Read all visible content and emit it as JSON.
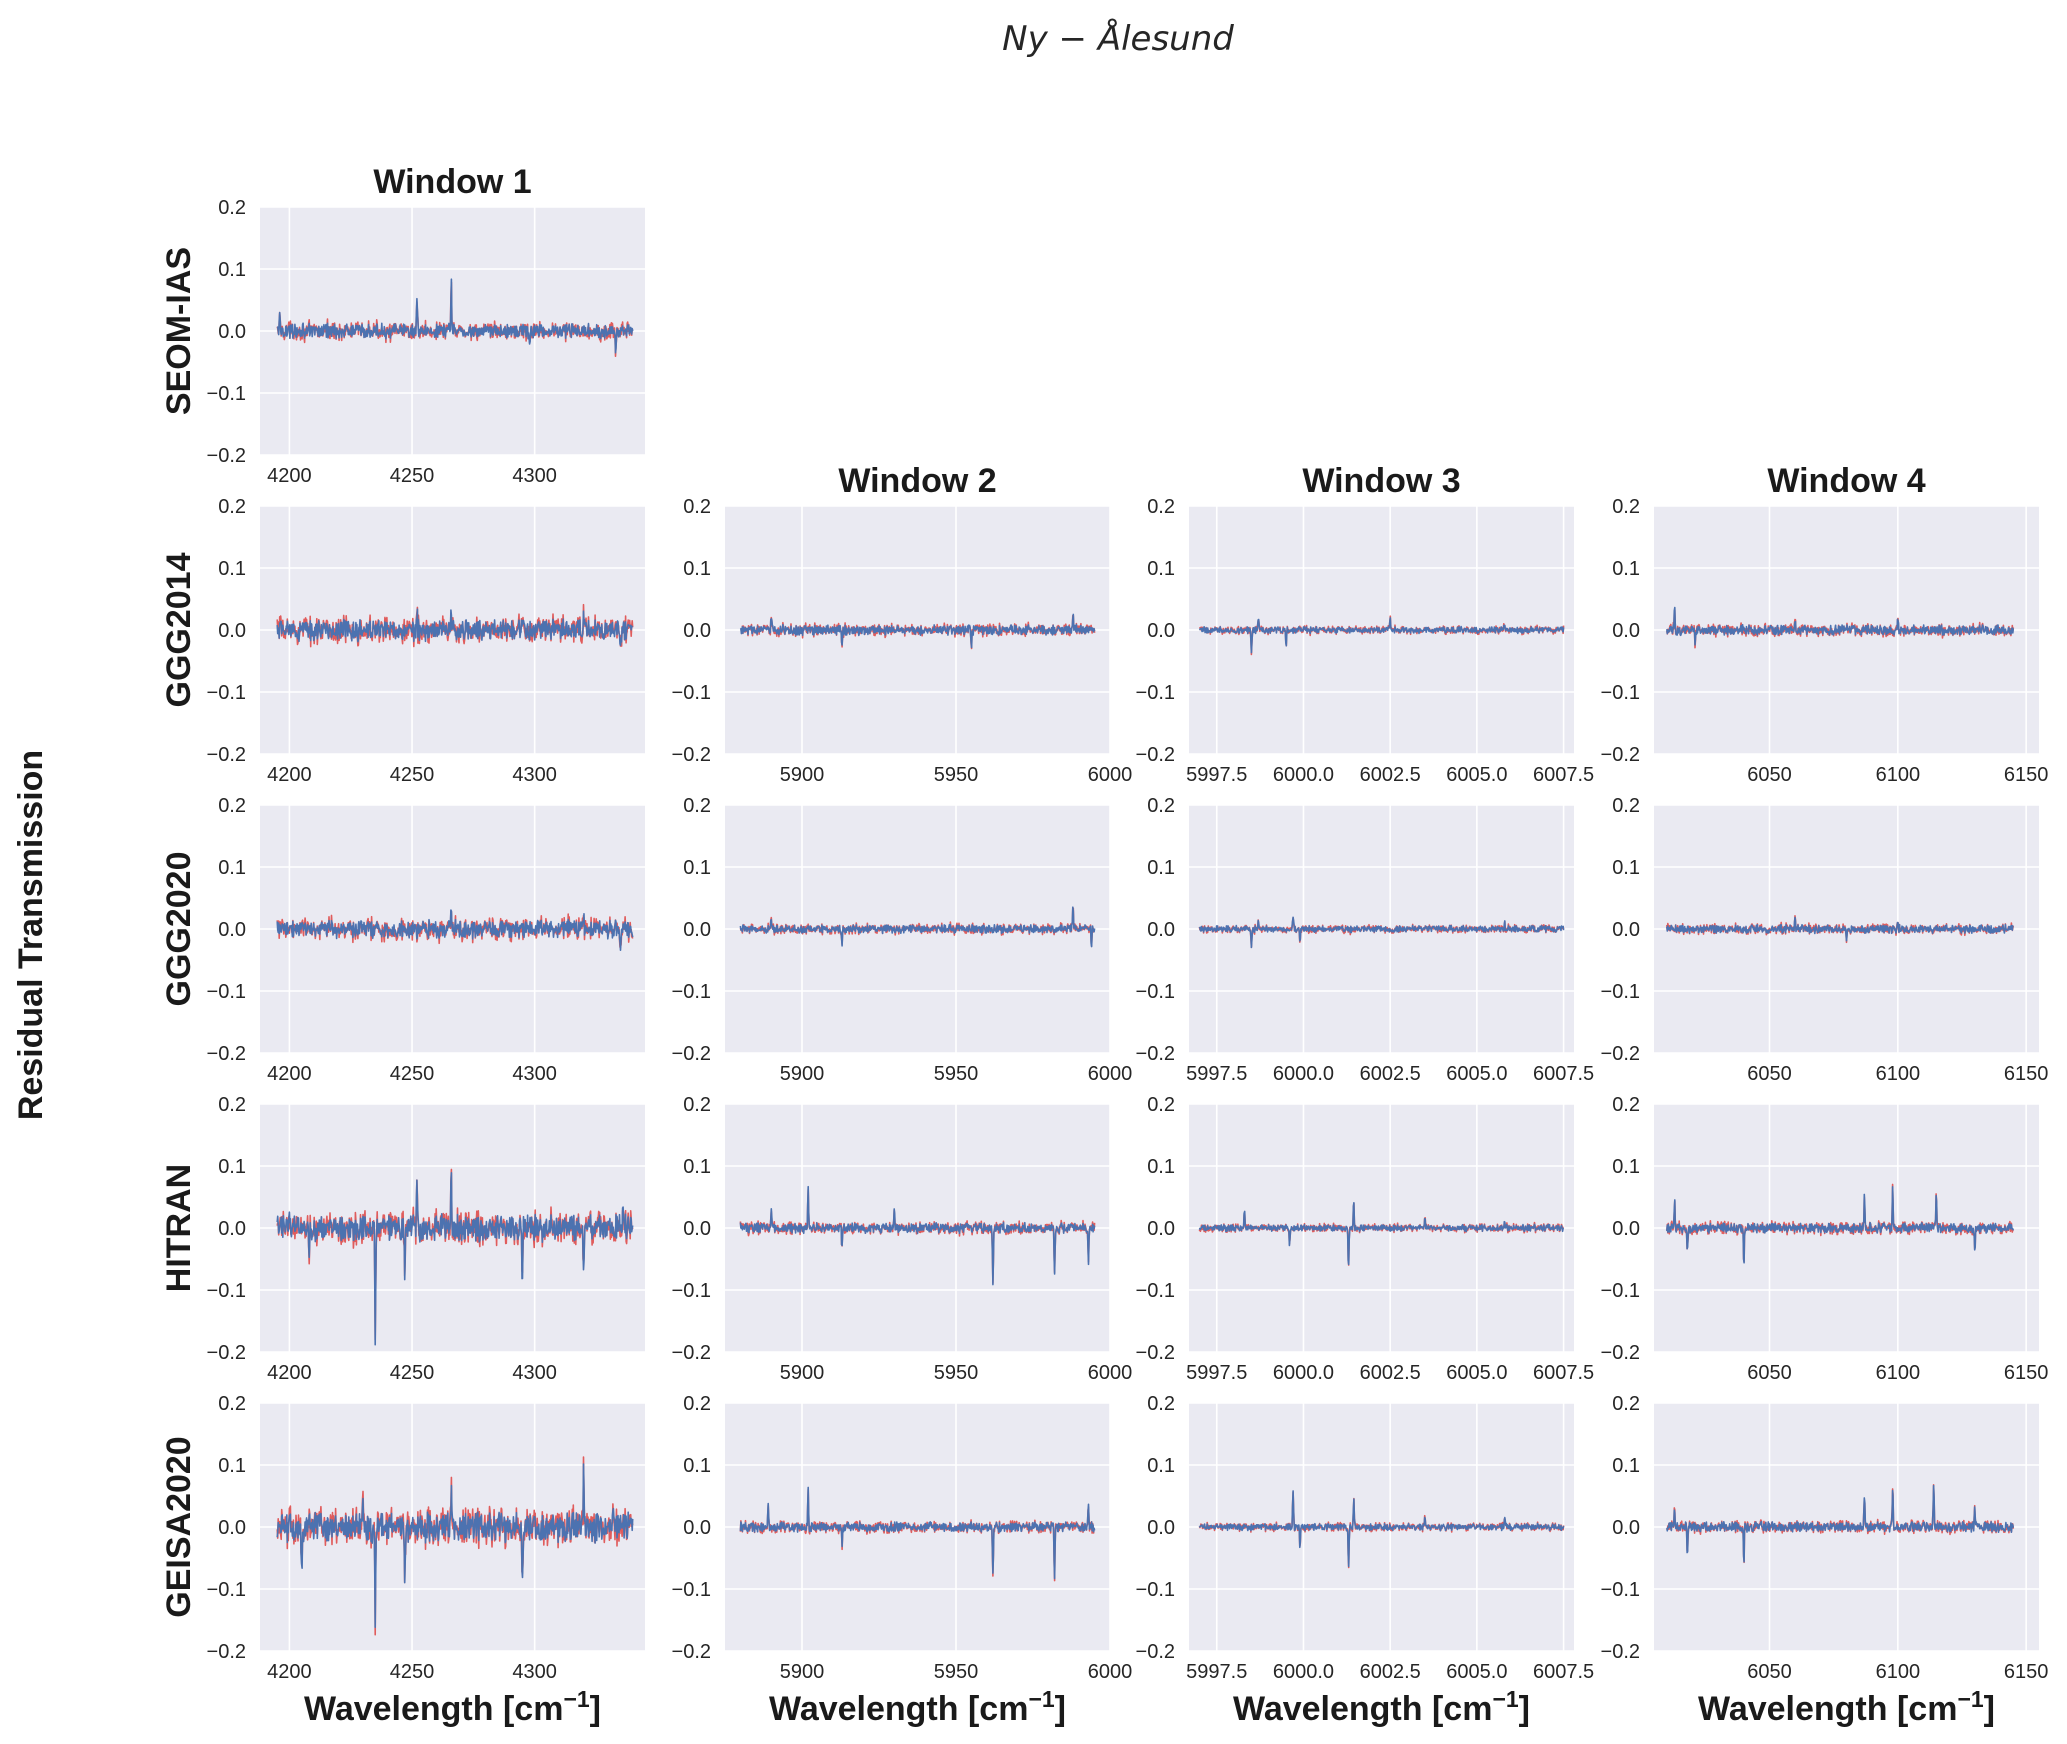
{
  "figure": {
    "title": "Ny − Ålesund",
    "ylabel": "Residual Transmission",
    "xlabel": "Wavelength [cm",
    "xlabel_exponent": "−1",
    "xlabel_close": "]",
    "colors": {
      "background": "#eaeaf2",
      "grid": "#ffffff",
      "observed": "#e05c5c",
      "fitted": "#4c72b0"
    }
  },
  "chart_data": [
    {
      "type": "line",
      "title": "Window 1",
      "row": "SEOM-IAS",
      "window": 1,
      "xlim": [
        4188,
        4345
      ],
      "ylim": [
        -0.2,
        0.2
      ],
      "xticks": [
        4200,
        4250,
        4300
      ],
      "xtick_labels": [
        "4200",
        "4250",
        "4300"
      ],
      "yticks": [
        -0.2,
        -0.1,
        0.0,
        0.1,
        0.2
      ],
      "ytick_labels": [
        "−0.2",
        "−0.1",
        "0.0",
        "0.1",
        "0.2"
      ],
      "x_range": [
        4195,
        4340
      ],
      "noise_amplitude": 0.009,
      "spikes": [
        [
          4252,
          0.05
        ],
        [
          4266,
          0.075
        ],
        [
          4298,
          -0.03
        ],
        [
          4333,
          -0.035
        ],
        [
          4196,
          0.025
        ]
      ]
    },
    {
      "type": "line",
      "title": "Window 1",
      "row": "GGG2014",
      "window": 1,
      "xlim": [
        4188,
        4345
      ],
      "ylim": [
        -0.2,
        0.2
      ],
      "xticks": [
        4200,
        4250,
        4300
      ],
      "xtick_labels": [
        "4200",
        "4250",
        "4300"
      ],
      "yticks": [
        -0.2,
        -0.1,
        0.0,
        0.1,
        0.2
      ],
      "ytick_labels": [
        "−0.2",
        "−0.1",
        "0.0",
        "0.1",
        "0.2"
      ],
      "x_range": [
        4195,
        4340
      ],
      "noise_amplitude": 0.013,
      "spikes": [
        [
          4266,
          0.035
        ],
        [
          4252,
          0.03
        ],
        [
          4320,
          0.025
        ],
        [
          4335,
          -0.03
        ]
      ]
    },
    {
      "type": "line",
      "title": "Window 2",
      "row": "GGG2014",
      "window": 2,
      "xlim": [
        5875,
        6000
      ],
      "ylim": [
        -0.2,
        0.2
      ],
      "xticks": [
        5900,
        5950,
        6000
      ],
      "xtick_labels": [
        "5900",
        "5950",
        "6000"
      ],
      "yticks": [
        -0.2,
        -0.1,
        0.0,
        0.1,
        0.2
      ],
      "ytick_labels": [
        "−0.2",
        "−0.1",
        "0.0",
        "0.1",
        "0.2"
      ],
      "x_range": [
        5880,
        5995
      ],
      "noise_amplitude": 0.006,
      "spikes": [
        [
          5890,
          0.025
        ],
        [
          5913,
          -0.03
        ],
        [
          5955,
          -0.03
        ],
        [
          5988,
          0.03
        ]
      ]
    },
    {
      "type": "line",
      "title": "Window 3",
      "row": "GGG2014",
      "window": 3,
      "xlim": [
        5996.7,
        6007.8
      ],
      "ylim": [
        -0.2,
        0.2
      ],
      "xticks": [
        5997.5,
        6000.0,
        6002.5,
        6005.0,
        6007.5
      ],
      "xtick_labels": [
        "5997.5",
        "6000.0",
        "6002.5",
        "6005.0",
        "6007.5"
      ],
      "yticks": [
        -0.2,
        -0.1,
        0.0,
        0.1,
        0.2
      ],
      "ytick_labels": [
        "−0.2",
        "−0.1",
        "0.0",
        "0.1",
        "0.2"
      ],
      "x_range": [
        5997.0,
        6007.5
      ],
      "noise_amplitude": 0.004,
      "spikes": [
        [
          5998.5,
          -0.035
        ],
        [
          5998.7,
          0.018
        ],
        [
          5999.5,
          -0.025
        ],
        [
          6002.5,
          0.018
        ],
        [
          6005.8,
          0.012
        ]
      ]
    },
    {
      "type": "line",
      "title": "Window 4",
      "row": "GGG2014",
      "window": 4,
      "xlim": [
        6005,
        6155
      ],
      "ylim": [
        -0.2,
        0.2
      ],
      "xticks": [
        6050,
        6100,
        6150
      ],
      "xtick_labels": [
        "6050",
        "6100",
        "6150"
      ],
      "yticks": [
        -0.2,
        -0.1,
        0.0,
        0.1,
        0.2
      ],
      "ytick_labels": [
        "−0.2",
        "−0.1",
        "0.0",
        "0.1",
        "0.2"
      ],
      "x_range": [
        6010,
        6145
      ],
      "noise_amplitude": 0.006,
      "spikes": [
        [
          6013,
          0.035
        ],
        [
          6021,
          -0.02
        ],
        [
          6060,
          0.02
        ],
        [
          6100,
          0.018
        ]
      ]
    },
    {
      "type": "line",
      "title": "Window 1",
      "row": "GGG2020",
      "window": 1,
      "xlim": [
        4188,
        4345
      ],
      "ylim": [
        -0.2,
        0.2
      ],
      "xticks": [
        4200,
        4250,
        4300
      ],
      "xtick_labels": [
        "4200",
        "4250",
        "4300"
      ],
      "yticks": [
        -0.2,
        -0.1,
        0.0,
        0.1,
        0.2
      ],
      "ytick_labels": [
        "−0.2",
        "−0.1",
        "0.0",
        "0.1",
        "0.2"
      ],
      "x_range": [
        4195,
        4340
      ],
      "noise_amplitude": 0.011,
      "spikes": [
        [
          4266,
          0.028
        ],
        [
          4320,
          0.02
        ],
        [
          4335,
          -0.03
        ],
        [
          4252,
          -0.02
        ]
      ]
    },
    {
      "type": "line",
      "title": "Window 2",
      "row": "GGG2020",
      "window": 2,
      "xlim": [
        5875,
        6000
      ],
      "ylim": [
        -0.2,
        0.2
      ],
      "xticks": [
        5900,
        5950,
        6000
      ],
      "xtick_labels": [
        "5900",
        "5950",
        "6000"
      ],
      "yticks": [
        -0.2,
        -0.1,
        0.0,
        0.1,
        0.2
      ],
      "ytick_labels": [
        "−0.2",
        "−0.1",
        "0.0",
        "0.1",
        "0.2"
      ],
      "x_range": [
        5880,
        5995
      ],
      "noise_amplitude": 0.005,
      "spikes": [
        [
          5890,
          0.02
        ],
        [
          5913,
          -0.025
        ],
        [
          5988,
          0.035
        ],
        [
          5994,
          -0.03
        ]
      ]
    },
    {
      "type": "line",
      "title": "Window 3",
      "row": "GGG2020",
      "window": 3,
      "xlim": [
        5996.7,
        6007.8
      ],
      "ylim": [
        -0.2,
        0.2
      ],
      "xticks": [
        5997.5,
        6000.0,
        6002.5,
        6005.0,
        6007.5
      ],
      "xtick_labels": [
        "5997.5",
        "6000.0",
        "6002.5",
        "6005.0",
        "6007.5"
      ],
      "yticks": [
        -0.2,
        -0.1,
        0.0,
        0.1,
        0.2
      ],
      "ytick_labels": [
        "−0.2",
        "−0.1",
        "0.0",
        "0.1",
        "0.2"
      ],
      "x_range": [
        5997.0,
        6007.5
      ],
      "noise_amplitude": 0.004,
      "spikes": [
        [
          5998.5,
          -0.03
        ],
        [
          5998.7,
          0.015
        ],
        [
          5999.7,
          0.02
        ],
        [
          5999.9,
          -0.02
        ],
        [
          6005.8,
          0.012
        ]
      ]
    },
    {
      "type": "line",
      "title": "Window 4",
      "row": "GGG2020",
      "window": 4,
      "xlim": [
        6005,
        6155
      ],
      "ylim": [
        -0.2,
        0.2
      ],
      "xticks": [
        6050,
        6100,
        6150
      ],
      "xtick_labels": [
        "6050",
        "6100",
        "6150"
      ],
      "yticks": [
        -0.2,
        -0.1,
        0.0,
        0.1,
        0.2
      ],
      "ytick_labels": [
        "−0.2",
        "−0.1",
        "0.0",
        "0.1",
        "0.2"
      ],
      "x_range": [
        6010,
        6145
      ],
      "noise_amplitude": 0.005,
      "spikes": [
        [
          6060,
          0.018
        ],
        [
          6080,
          -0.018
        ],
        [
          6100,
          0.015
        ]
      ]
    },
    {
      "type": "line",
      "title": "Window 1",
      "row": "HITRAN",
      "window": 1,
      "xlim": [
        4188,
        4345
      ],
      "ylim": [
        -0.2,
        0.2
      ],
      "xticks": [
        4200,
        4250,
        4300
      ],
      "xtick_labels": [
        "4200",
        "4250",
        "4300"
      ],
      "yticks": [
        -0.2,
        -0.1,
        0.0,
        0.1,
        0.2
      ],
      "ytick_labels": [
        "−0.2",
        "−0.1",
        "0.0",
        "0.1",
        "0.2"
      ],
      "x_range": [
        4195,
        4340
      ],
      "noise_amplitude": 0.016,
      "spikes": [
        [
          4235,
          -0.195
        ],
        [
          4247,
          -0.08
        ],
        [
          4252,
          0.07
        ],
        [
          4266,
          0.075
        ],
        [
          4295,
          -0.1
        ],
        [
          4200,
          0.035
        ],
        [
          4320,
          -0.07
        ],
        [
          4336,
          0.035
        ],
        [
          4208,
          -0.04
        ]
      ]
    },
    {
      "type": "line",
      "title": "Window 2",
      "row": "HITRAN",
      "window": 2,
      "xlim": [
        5875,
        6000
      ],
      "ylim": [
        -0.2,
        0.2
      ],
      "xticks": [
        5900,
        5950,
        6000
      ],
      "xtick_labels": [
        "5900",
        "5950",
        "6000"
      ],
      "yticks": [
        -0.2,
        -0.1,
        0.0,
        0.1,
        0.2
      ],
      "ytick_labels": [
        "−0.2",
        "−0.1",
        "0.0",
        "0.1",
        "0.2"
      ],
      "x_range": [
        5880,
        5995
      ],
      "noise_amplitude": 0.006,
      "spikes": [
        [
          5902,
          0.065
        ],
        [
          5962,
          -0.09
        ],
        [
          5982,
          -0.075
        ],
        [
          5993,
          -0.06
        ],
        [
          5890,
          0.03
        ],
        [
          5930,
          0.025
        ],
        [
          5913,
          -0.035
        ]
      ]
    },
    {
      "type": "line",
      "title": "Window 3",
      "row": "HITRAN",
      "window": 3,
      "xlim": [
        5996.7,
        6007.8
      ],
      "ylim": [
        -0.2,
        0.2
      ],
      "xticks": [
        5997.5,
        6000.0,
        6002.5,
        6005.0,
        6007.5
      ],
      "xtick_labels": [
        "5997.5",
        "6000.0",
        "6002.5",
        "6005.0",
        "6007.5"
      ],
      "yticks": [
        -0.2,
        -0.1,
        0.0,
        0.1,
        0.2
      ],
      "ytick_labels": [
        "−0.2",
        "−0.1",
        "0.0",
        "0.1",
        "0.2"
      ],
      "x_range": [
        5997.0,
        6007.5
      ],
      "noise_amplitude": 0.004,
      "spikes": [
        [
          6001.3,
          -0.065
        ],
        [
          6001.45,
          0.045
        ],
        [
          5999.6,
          -0.03
        ],
        [
          5998.3,
          0.03
        ],
        [
          6003.5,
          0.02
        ],
        [
          6005.8,
          0.015
        ]
      ]
    },
    {
      "type": "line",
      "title": "Window 4",
      "row": "HITRAN",
      "window": 4,
      "xlim": [
        6005,
        6155
      ],
      "ylim": [
        -0.2,
        0.2
      ],
      "xticks": [
        6050,
        6100,
        6150
      ],
      "xtick_labels": [
        "6050",
        "6100",
        "6150"
      ],
      "yticks": [
        -0.2,
        -0.1,
        0.0,
        0.1,
        0.2
      ],
      "ytick_labels": [
        "−0.2",
        "−0.1",
        "0.0",
        "0.1",
        "0.2"
      ],
      "x_range": [
        6010,
        6145
      ],
      "noise_amplitude": 0.006,
      "spikes": [
        [
          6098,
          0.07
        ],
        [
          6040,
          -0.065
        ],
        [
          6115,
          0.055
        ],
        [
          6087,
          0.05
        ],
        [
          6018,
          -0.04
        ],
        [
          6130,
          -0.045
        ],
        [
          6013,
          0.045
        ]
      ]
    },
    {
      "type": "line",
      "title": "Window 1",
      "row": "GEISA2020",
      "window": 1,
      "xlim": [
        4188,
        4345
      ],
      "ylim": [
        -0.2,
        0.2
      ],
      "xticks": [
        4200,
        4250,
        4300
      ],
      "xtick_labels": [
        "4200",
        "4250",
        "4300"
      ],
      "yticks": [
        -0.2,
        -0.1,
        0.0,
        0.1,
        0.2
      ],
      "ytick_labels": [
        "−0.2",
        "−0.1",
        "0.0",
        "0.1",
        "0.2"
      ],
      "x_range": [
        4195,
        4340
      ],
      "noise_amplitude": 0.018,
      "spikes": [
        [
          4235,
          -0.15
        ],
        [
          4247,
          -0.1
        ],
        [
          4266,
          0.07
        ],
        [
          4295,
          -0.09
        ],
        [
          4320,
          0.105
        ],
        [
          4205,
          -0.075
        ],
        [
          4332,
          0.055
        ],
        [
          4230,
          0.05
        ]
      ]
    },
    {
      "type": "line",
      "title": "Window 2",
      "row": "GEISA2020",
      "window": 2,
      "xlim": [
        5875,
        6000
      ],
      "ylim": [
        -0.2,
        0.2
      ],
      "xticks": [
        5900,
        5950,
        6000
      ],
      "xtick_labels": [
        "5900",
        "5950",
        "6000"
      ],
      "yticks": [
        -0.2,
        -0.1,
        0.0,
        0.1,
        0.2
      ],
      "ytick_labels": [
        "−0.2",
        "−0.1",
        "0.0",
        "0.1",
        "0.2"
      ],
      "x_range": [
        5880,
        5995
      ],
      "noise_amplitude": 0.006,
      "spikes": [
        [
          5902,
          0.06
        ],
        [
          5962,
          -0.08
        ],
        [
          5982,
          -0.085
        ],
        [
          5889,
          0.035
        ],
        [
          5993,
          0.035
        ],
        [
          5913,
          -0.03
        ]
      ]
    },
    {
      "type": "line",
      "title": "Window 3",
      "row": "GEISA2020",
      "window": 3,
      "xlim": [
        5996.7,
        6007.8
      ],
      "ylim": [
        -0.2,
        0.2
      ],
      "xticks": [
        5997.5,
        6000.0,
        6002.5,
        6005.0,
        6007.5
      ],
      "xtick_labels": [
        "5997.5",
        "6000.0",
        "6002.5",
        "6005.0",
        "6007.5"
      ],
      "yticks": [
        -0.2,
        -0.1,
        0.0,
        0.1,
        0.2
      ],
      "ytick_labels": [
        "−0.2",
        "−0.1",
        "0.0",
        "0.1",
        "0.2"
      ],
      "x_range": [
        5997.0,
        6007.5
      ],
      "noise_amplitude": 0.004,
      "spikes": [
        [
          6001.3,
          -0.065
        ],
        [
          6001.45,
          0.045
        ],
        [
          5999.7,
          0.055
        ],
        [
          5999.9,
          -0.03
        ],
        [
          6003.5,
          0.02
        ],
        [
          6005.8,
          0.015
        ]
      ]
    },
    {
      "type": "line",
      "title": "Window 4",
      "row": "GEISA2020",
      "window": 4,
      "xlim": [
        6005,
        6155
      ],
      "ylim": [
        -0.2,
        0.2
      ],
      "xticks": [
        6050,
        6100,
        6150
      ],
      "xtick_labels": [
        "6050",
        "6100",
        "6150"
      ],
      "yticks": [
        -0.2,
        -0.1,
        0.0,
        0.1,
        0.2
      ],
      "ytick_labels": [
        "−0.2",
        "−0.1",
        "0.0",
        "0.1",
        "0.2"
      ],
      "x_range": [
        6010,
        6145
      ],
      "noise_amplitude": 0.006,
      "spikes": [
        [
          6114,
          0.07
        ],
        [
          6098,
          0.065
        ],
        [
          6040,
          -0.06
        ],
        [
          6087,
          0.05
        ],
        [
          6018,
          -0.04
        ],
        [
          6130,
          0.03
        ],
        [
          6013,
          0.03
        ]
      ]
    }
  ]
}
